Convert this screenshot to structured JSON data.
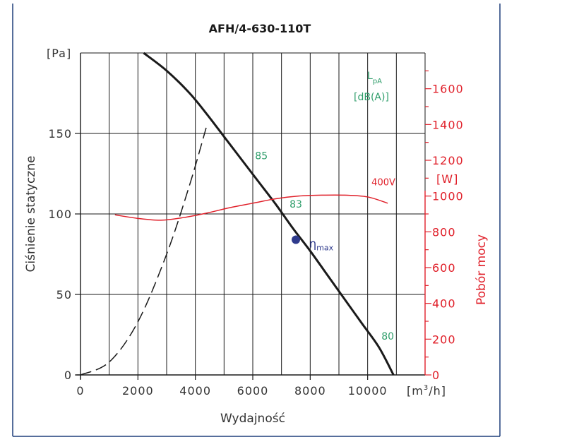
{
  "chart_data": {
    "type": "line",
    "title": "AFH/4-630-110T",
    "xlabel": "Wydajność",
    "ylabel": "Ciśnienie statyczne",
    "y2label": "Pobór mocy",
    "x_unit": {
      "prefix": "[m",
      "sup": "3",
      "suffix": "/h]"
    },
    "y_unit": "[Pa]",
    "y2_unit": "[W]",
    "xlim": [
      0,
      12000
    ],
    "ylim": [
      0,
      200
    ],
    "y2lim": [
      0,
      1800
    ],
    "x_ticks": [
      0,
      2000,
      4000,
      6000,
      8000,
      10000
    ],
    "y_ticks": [
      0,
      50,
      100,
      150
    ],
    "y2_ticks": [
      0,
      200,
      400,
      600,
      800,
      1000,
      1200,
      1400,
      1600
    ],
    "grid": true,
    "colors": {
      "curve": "#1a1a1a",
      "power": "#e0202a",
      "sound": "#2e9d6a",
      "eta": "#2e3a8c",
      "frame": "#1f3f7a"
    },
    "series": [
      {
        "name": "",
        "kind": "fan-curve",
        "x": [
          2200,
          3000,
          3800,
          4400,
          5000,
          5600,
          6200,
          6800,
          7400,
          8000,
          8600,
          9200,
          9800,
          10400,
          10900
        ],
        "y": [
          200,
          189,
          175,
          162,
          148,
          134,
          120,
          106,
          91,
          77,
          62,
          47,
          32,
          17,
          0
        ]
      },
      {
        "name": "",
        "kind": "system-curve",
        "x": [
          0,
          1000,
          2000,
          3000,
          3800,
          4400,
          4700
        ],
        "y": [
          0,
          8,
          33,
          75,
          118,
          155,
          155
        ]
      },
      {
        "name": "400V",
        "kind": "power",
        "axis": "y2",
        "x": [
          1200,
          2000,
          2800,
          3600,
          4400,
          5200,
          6000,
          6800,
          7600,
          8400,
          9200,
          10000,
          10700
        ],
        "y": [
          895,
          875,
          865,
          880,
          905,
          935,
          960,
          985,
          1000,
          1005,
          1005,
          995,
          960
        ]
      }
    ],
    "sound_level_label": {
      "main": "L",
      "sub": "pA",
      "unit": "[dB(A)]"
    },
    "sound_levels": [
      {
        "label": "85",
        "x": 6300,
        "y": 134
      },
      {
        "label": "83",
        "x": 7500,
        "y": 104
      },
      {
        "label": "80",
        "x": 10700,
        "y": 22
      }
    ],
    "eta_max": {
      "x": 7500,
      "y": 84,
      "symbol": "η",
      "sub": "max"
    },
    "power_label": {
      "text": "400V",
      "x": 10550,
      "y": 1060
    }
  }
}
